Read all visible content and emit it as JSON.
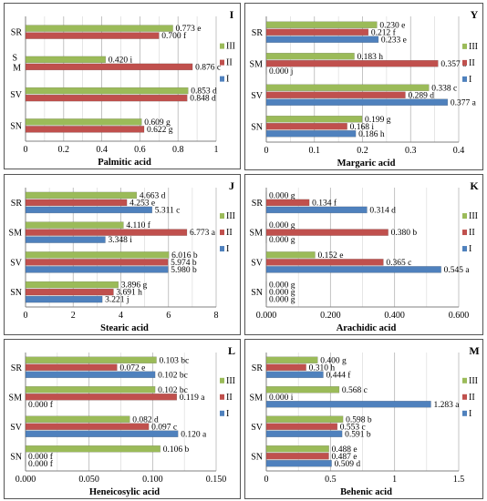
{
  "colors": {
    "I": "#4f81bd",
    "II": "#c0504d",
    "III": "#9bbb59"
  },
  "legend_order": [
    "III",
    "II",
    "I"
  ],
  "chart_data": [
    {
      "type": "bar",
      "orientation": "horizontal",
      "panel_label": "I",
      "xlabel": "Palmitic acid",
      "xlim": [
        0,
        1
      ],
      "xticks": [
        "0",
        "0.2",
        "0.4",
        "0.6",
        "0.8",
        "1"
      ],
      "xtick_values": [
        0,
        0.2,
        0.4,
        0.6,
        0.8,
        1
      ],
      "categories": [
        {
          "label": "SR",
          "series": [
            {
              "name": "III",
              "value": 0.773,
              "label": "0.773 e"
            },
            {
              "name": "II",
              "value": 0.7,
              "label": "0.700 f"
            }
          ]
        },
        {
          "label": "S M",
          "series": [
            {
              "name": "III",
              "value": 0.42,
              "label": "0.420 i"
            },
            {
              "name": "II",
              "value": 0.876,
              "label": "0.876 c"
            }
          ]
        },
        {
          "label": "SV",
          "series": [
            {
              "name": "III",
              "value": 0.853,
              "label": "0.853 d"
            },
            {
              "name": "II",
              "value": 0.848,
              "label": "0.848 d"
            }
          ]
        },
        {
          "label": "SN",
          "series": [
            {
              "name": "III",
              "value": 0.609,
              "label": "0.609 g"
            },
            {
              "name": "II",
              "value": 0.622,
              "label": "0.622 g"
            }
          ]
        }
      ]
    },
    {
      "type": "bar",
      "orientation": "horizontal",
      "panel_label": "Y",
      "xlabel": "Margaric acid",
      "xlim": [
        0,
        0.4
      ],
      "xticks": [
        "0",
        "0.1",
        "0.2",
        "0.3",
        "0.4"
      ],
      "xtick_values": [
        0,
        0.1,
        0.2,
        0.3,
        0.4
      ],
      "categories": [
        {
          "label": "SR",
          "series": [
            {
              "name": "III",
              "value": 0.23,
              "label": "0.230 e"
            },
            {
              "name": "II",
              "value": 0.212,
              "label": "0.212 f"
            },
            {
              "name": "I",
              "value": 0.233,
              "label": "0.233 e"
            }
          ]
        },
        {
          "label": "SM",
          "series": [
            {
              "name": "III",
              "value": 0.183,
              "label": "0.183 h"
            },
            {
              "name": "II",
              "value": 0.357,
              "label": "0.357 b"
            },
            {
              "name": "I",
              "value": 0.0,
              "label": "0.000 j"
            }
          ]
        },
        {
          "label": "SV",
          "series": [
            {
              "name": "III",
              "value": 0.338,
              "label": "0.338 c"
            },
            {
              "name": "II",
              "value": 0.289,
              "label": "0.289 d"
            },
            {
              "name": "I",
              "value": 0.377,
              "label": "0.377 a"
            }
          ]
        },
        {
          "label": "SN",
          "series": [
            {
              "name": "III",
              "value": 0.199,
              "label": "0.199 g"
            },
            {
              "name": "II",
              "value": 0.168,
              "label": "0.168 i"
            },
            {
              "name": "I",
              "value": 0.186,
              "label": "0.186 h"
            }
          ]
        }
      ]
    },
    {
      "type": "bar",
      "orientation": "horizontal",
      "panel_label": "J",
      "xlabel": "Stearic acid",
      "xlim": [
        0,
        8
      ],
      "xticks": [
        "0",
        "2",
        "4",
        "6",
        "8"
      ],
      "xtick_values": [
        0,
        2,
        4,
        6,
        8
      ],
      "categories": [
        {
          "label": "SR",
          "series": [
            {
              "name": "III",
              "value": 4.663,
              "label": "4.663 d"
            },
            {
              "name": "II",
              "value": 4.253,
              "label": "4.253 e"
            },
            {
              "name": "I",
              "value": 5.311,
              "label": "5.311 c"
            }
          ]
        },
        {
          "label": "SM",
          "series": [
            {
              "name": "III",
              "value": 4.11,
              "label": "4.110 f"
            },
            {
              "name": "II",
              "value": 6.773,
              "label": "6.773 a"
            },
            {
              "name": "I",
              "value": 3.348,
              "label": "3.348 i"
            }
          ]
        },
        {
          "label": "SV",
          "series": [
            {
              "name": "III",
              "value": 6.016,
              "label": "6.016 b"
            },
            {
              "name": "II",
              "value": 5.974,
              "label": "5.974 b"
            },
            {
              "name": "I",
              "value": 5.98,
              "label": "5.980 b"
            }
          ]
        },
        {
          "label": "SN",
          "series": [
            {
              "name": "III",
              "value": 3.896,
              "label": "3.896 g"
            },
            {
              "name": "II",
              "value": 3.691,
              "label": "3.691 h"
            },
            {
              "name": "I",
              "value": 3.221,
              "label": "3.221 j"
            }
          ]
        }
      ]
    },
    {
      "type": "bar",
      "orientation": "horizontal",
      "panel_label": "K",
      "xlabel": "Arachidic acid",
      "xlim": [
        0,
        0.6
      ],
      "xticks": [
        "0.000",
        "0.200",
        "0.400",
        "0.600"
      ],
      "xtick_values": [
        0,
        0.2,
        0.4,
        0.6
      ],
      "categories": [
        {
          "label": "SR",
          "series": [
            {
              "name": "III",
              "value": 0.0,
              "label": "0.000 g"
            },
            {
              "name": "II",
              "value": 0.134,
              "label": "0.134 f"
            },
            {
              "name": "I",
              "value": 0.314,
              "label": "0.314 d"
            }
          ]
        },
        {
          "label": "SM",
          "series": [
            {
              "name": "III",
              "value": 0.0,
              "label": "0.000 g"
            },
            {
              "name": "II",
              "value": 0.38,
              "label": "0.380 b"
            },
            {
              "name": "I",
              "value": 0.0,
              "label": "0.000 g"
            }
          ]
        },
        {
          "label": "SV",
          "series": [
            {
              "name": "III",
              "value": 0.152,
              "label": "0.152 e"
            },
            {
              "name": "II",
              "value": 0.365,
              "label": "0.365 c"
            },
            {
              "name": "I",
              "value": 0.545,
              "label": "0.545 a"
            }
          ]
        },
        {
          "label": "SN",
          "series": [
            {
              "name": "III",
              "value": 0.0,
              "label": "0.000 g"
            },
            {
              "name": "II",
              "value": 0.0,
              "label": "0.000 g"
            },
            {
              "name": "I",
              "value": 0.0,
              "label": "0.000 g"
            }
          ]
        }
      ]
    },
    {
      "type": "bar",
      "orientation": "horizontal",
      "panel_label": "L",
      "xlabel": "Heneicosylic acid",
      "xlim": [
        0,
        0.15
      ],
      "xticks": [
        "0.000",
        "0.050",
        "0.100",
        "0.150"
      ],
      "xtick_values": [
        0,
        0.05,
        0.1,
        0.15
      ],
      "categories": [
        {
          "label": "SR",
          "series": [
            {
              "name": "III",
              "value": 0.103,
              "label": "0.103 bc"
            },
            {
              "name": "II",
              "value": 0.072,
              "label": "0.072 e"
            },
            {
              "name": "I",
              "value": 0.102,
              "label": "0.102 bc"
            }
          ]
        },
        {
          "label": "SM",
          "series": [
            {
              "name": "III",
              "value": 0.102,
              "label": "0.102 bc"
            },
            {
              "name": "II",
              "value": 0.119,
              "label": "0.119 a"
            },
            {
              "name": "I",
              "value": 0.0,
              "label": "0.000 f"
            }
          ]
        },
        {
          "label": "SV",
          "series": [
            {
              "name": "III",
              "value": 0.082,
              "label": "0.082 d"
            },
            {
              "name": "II",
              "value": 0.097,
              "label": "0.097 c"
            },
            {
              "name": "I",
              "value": 0.12,
              "label": "0.120 a"
            }
          ]
        },
        {
          "label": "SN",
          "series": [
            {
              "name": "III",
              "value": 0.106,
              "label": "0.106 b"
            },
            {
              "name": "II",
              "value": 0.0,
              "label": "0.000 f"
            },
            {
              "name": "I",
              "value": 0.0,
              "label": "0.000 f"
            }
          ]
        }
      ]
    },
    {
      "type": "bar",
      "orientation": "horizontal",
      "panel_label": "M",
      "xlabel": "Behenic acid",
      "xlim": [
        0,
        1.5
      ],
      "xticks": [
        "0",
        "0.5",
        "1",
        "1.5"
      ],
      "xtick_values": [
        0,
        0.5,
        1,
        1.5
      ],
      "categories": [
        {
          "label": "SR",
          "series": [
            {
              "name": "III",
              "value": 0.4,
              "label": "0.400 g"
            },
            {
              "name": "II",
              "value": 0.31,
              "label": "0.310 h"
            },
            {
              "name": "I",
              "value": 0.444,
              "label": "0.444 f"
            }
          ]
        },
        {
          "label": "SM",
          "series": [
            {
              "name": "III",
              "value": 0.568,
              "label": "0.568 c"
            },
            {
              "name": "II",
              "value": 0.0,
              "label": "0.000 i"
            },
            {
              "name": "I",
              "value": 1.283,
              "label": "1.283 a"
            }
          ]
        },
        {
          "label": "SV",
          "series": [
            {
              "name": "III",
              "value": 0.598,
              "label": "0.598 b"
            },
            {
              "name": "II",
              "value": 0.553,
              "label": "0.553 c"
            },
            {
              "name": "I",
              "value": 0.591,
              "label": "0.591 b"
            }
          ]
        },
        {
          "label": "SN",
          "series": [
            {
              "name": "III",
              "value": 0.488,
              "label": "0.488 e"
            },
            {
              "name": "II",
              "value": 0.487,
              "label": "0.487 e"
            },
            {
              "name": "I",
              "value": 0.509,
              "label": "0.509 d"
            }
          ]
        }
      ]
    }
  ]
}
